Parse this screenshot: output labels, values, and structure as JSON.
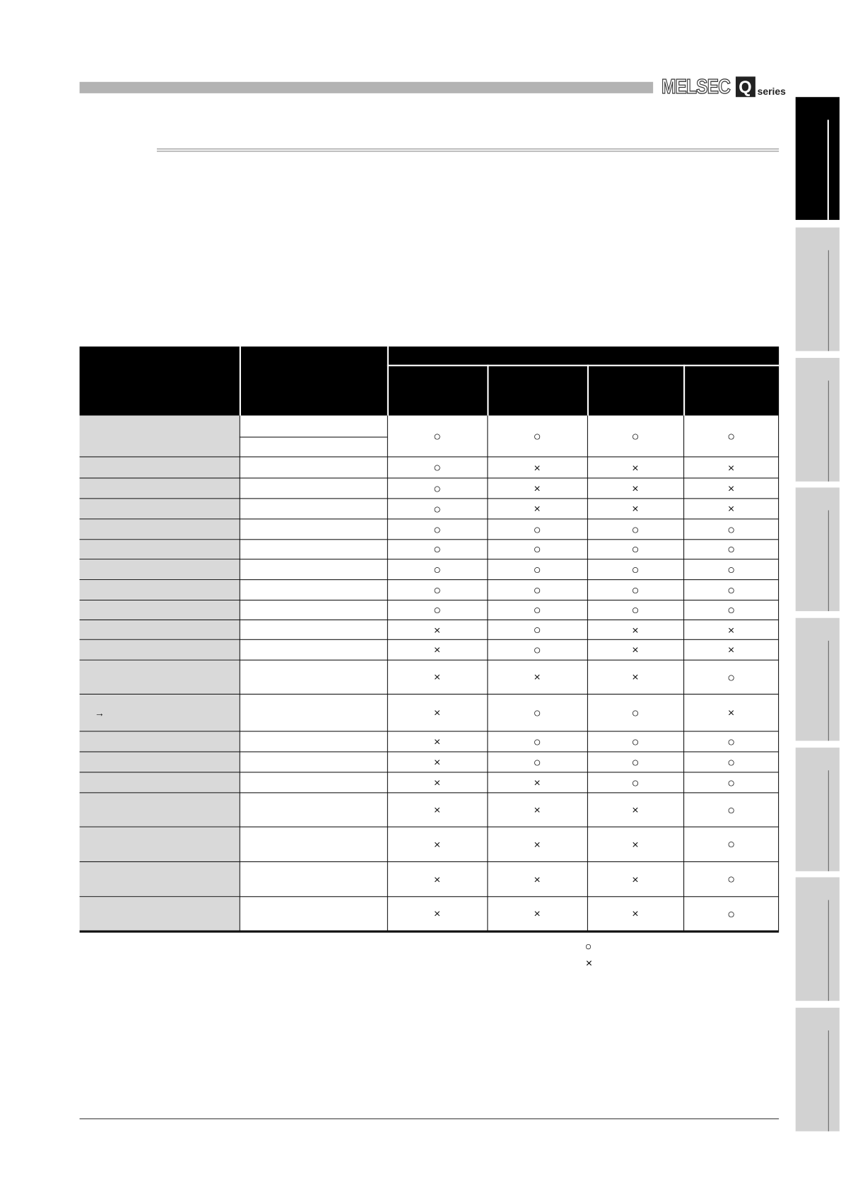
{
  "header": {
    "logo_text": "MELSEC",
    "logo_q": "Q",
    "logo_series": "series"
  },
  "side_tabs": {
    "count": 8,
    "active_index": 0
  },
  "table": {
    "header": {
      "col1": "",
      "col2": "",
      "group": "",
      "sub": [
        "",
        "",
        "",
        ""
      ]
    },
    "rows": [
      {
        "label": "",
        "sub": [
          "",
          ""
        ],
        "values": [
          "○",
          "○",
          "○",
          "○"
        ]
      },
      {
        "label": "",
        "values": [
          "○",
          "×",
          "×",
          "×"
        ]
      },
      {
        "label": "",
        "values": [
          "○",
          "×",
          "×",
          "×"
        ]
      },
      {
        "label": "",
        "values": [
          "○",
          "×",
          "×",
          "×"
        ]
      },
      {
        "label": "",
        "values": [
          "○",
          "○",
          "○",
          "○"
        ]
      },
      {
        "label": "",
        "values": [
          "○",
          "○",
          "○",
          "○"
        ]
      },
      {
        "label": "",
        "values": [
          "○",
          "○",
          "○",
          "○"
        ]
      },
      {
        "label": "",
        "values": [
          "○",
          "○",
          "○",
          "○"
        ]
      },
      {
        "label": "",
        "values": [
          "○",
          "○",
          "○",
          "○"
        ]
      },
      {
        "label": "",
        "values": [
          "×",
          "○",
          "×",
          "×"
        ]
      },
      {
        "label": "",
        "values": [
          "×",
          "○",
          "×",
          "×"
        ]
      },
      {
        "label": "",
        "values": [
          "×",
          "×",
          "×",
          "○"
        ]
      },
      {
        "label": "→",
        "values": [
          "×",
          "○",
          "○",
          "×"
        ]
      },
      {
        "label": "",
        "values": [
          "×",
          "○",
          "○",
          "○"
        ]
      },
      {
        "label": "",
        "values": [
          "×",
          "○",
          "○",
          "○"
        ]
      },
      {
        "label": "",
        "values": [
          "×",
          "×",
          "○",
          "○"
        ]
      },
      {
        "label": "",
        "values": [
          "×",
          "×",
          "×",
          "○"
        ]
      },
      {
        "label": "",
        "values": [
          "×",
          "×",
          "×",
          "○"
        ]
      },
      {
        "label": "",
        "values": [
          "×",
          "×",
          "×",
          "○"
        ]
      },
      {
        "label": "",
        "values": [
          "×",
          "×",
          "×",
          "○"
        ]
      }
    ]
  },
  "legend": {
    "supported": "○",
    "unsupported": "×"
  },
  "colors": {
    "label_column": "#d9d9d9",
    "header": "#000000",
    "tab": "#d2d2d2"
  }
}
